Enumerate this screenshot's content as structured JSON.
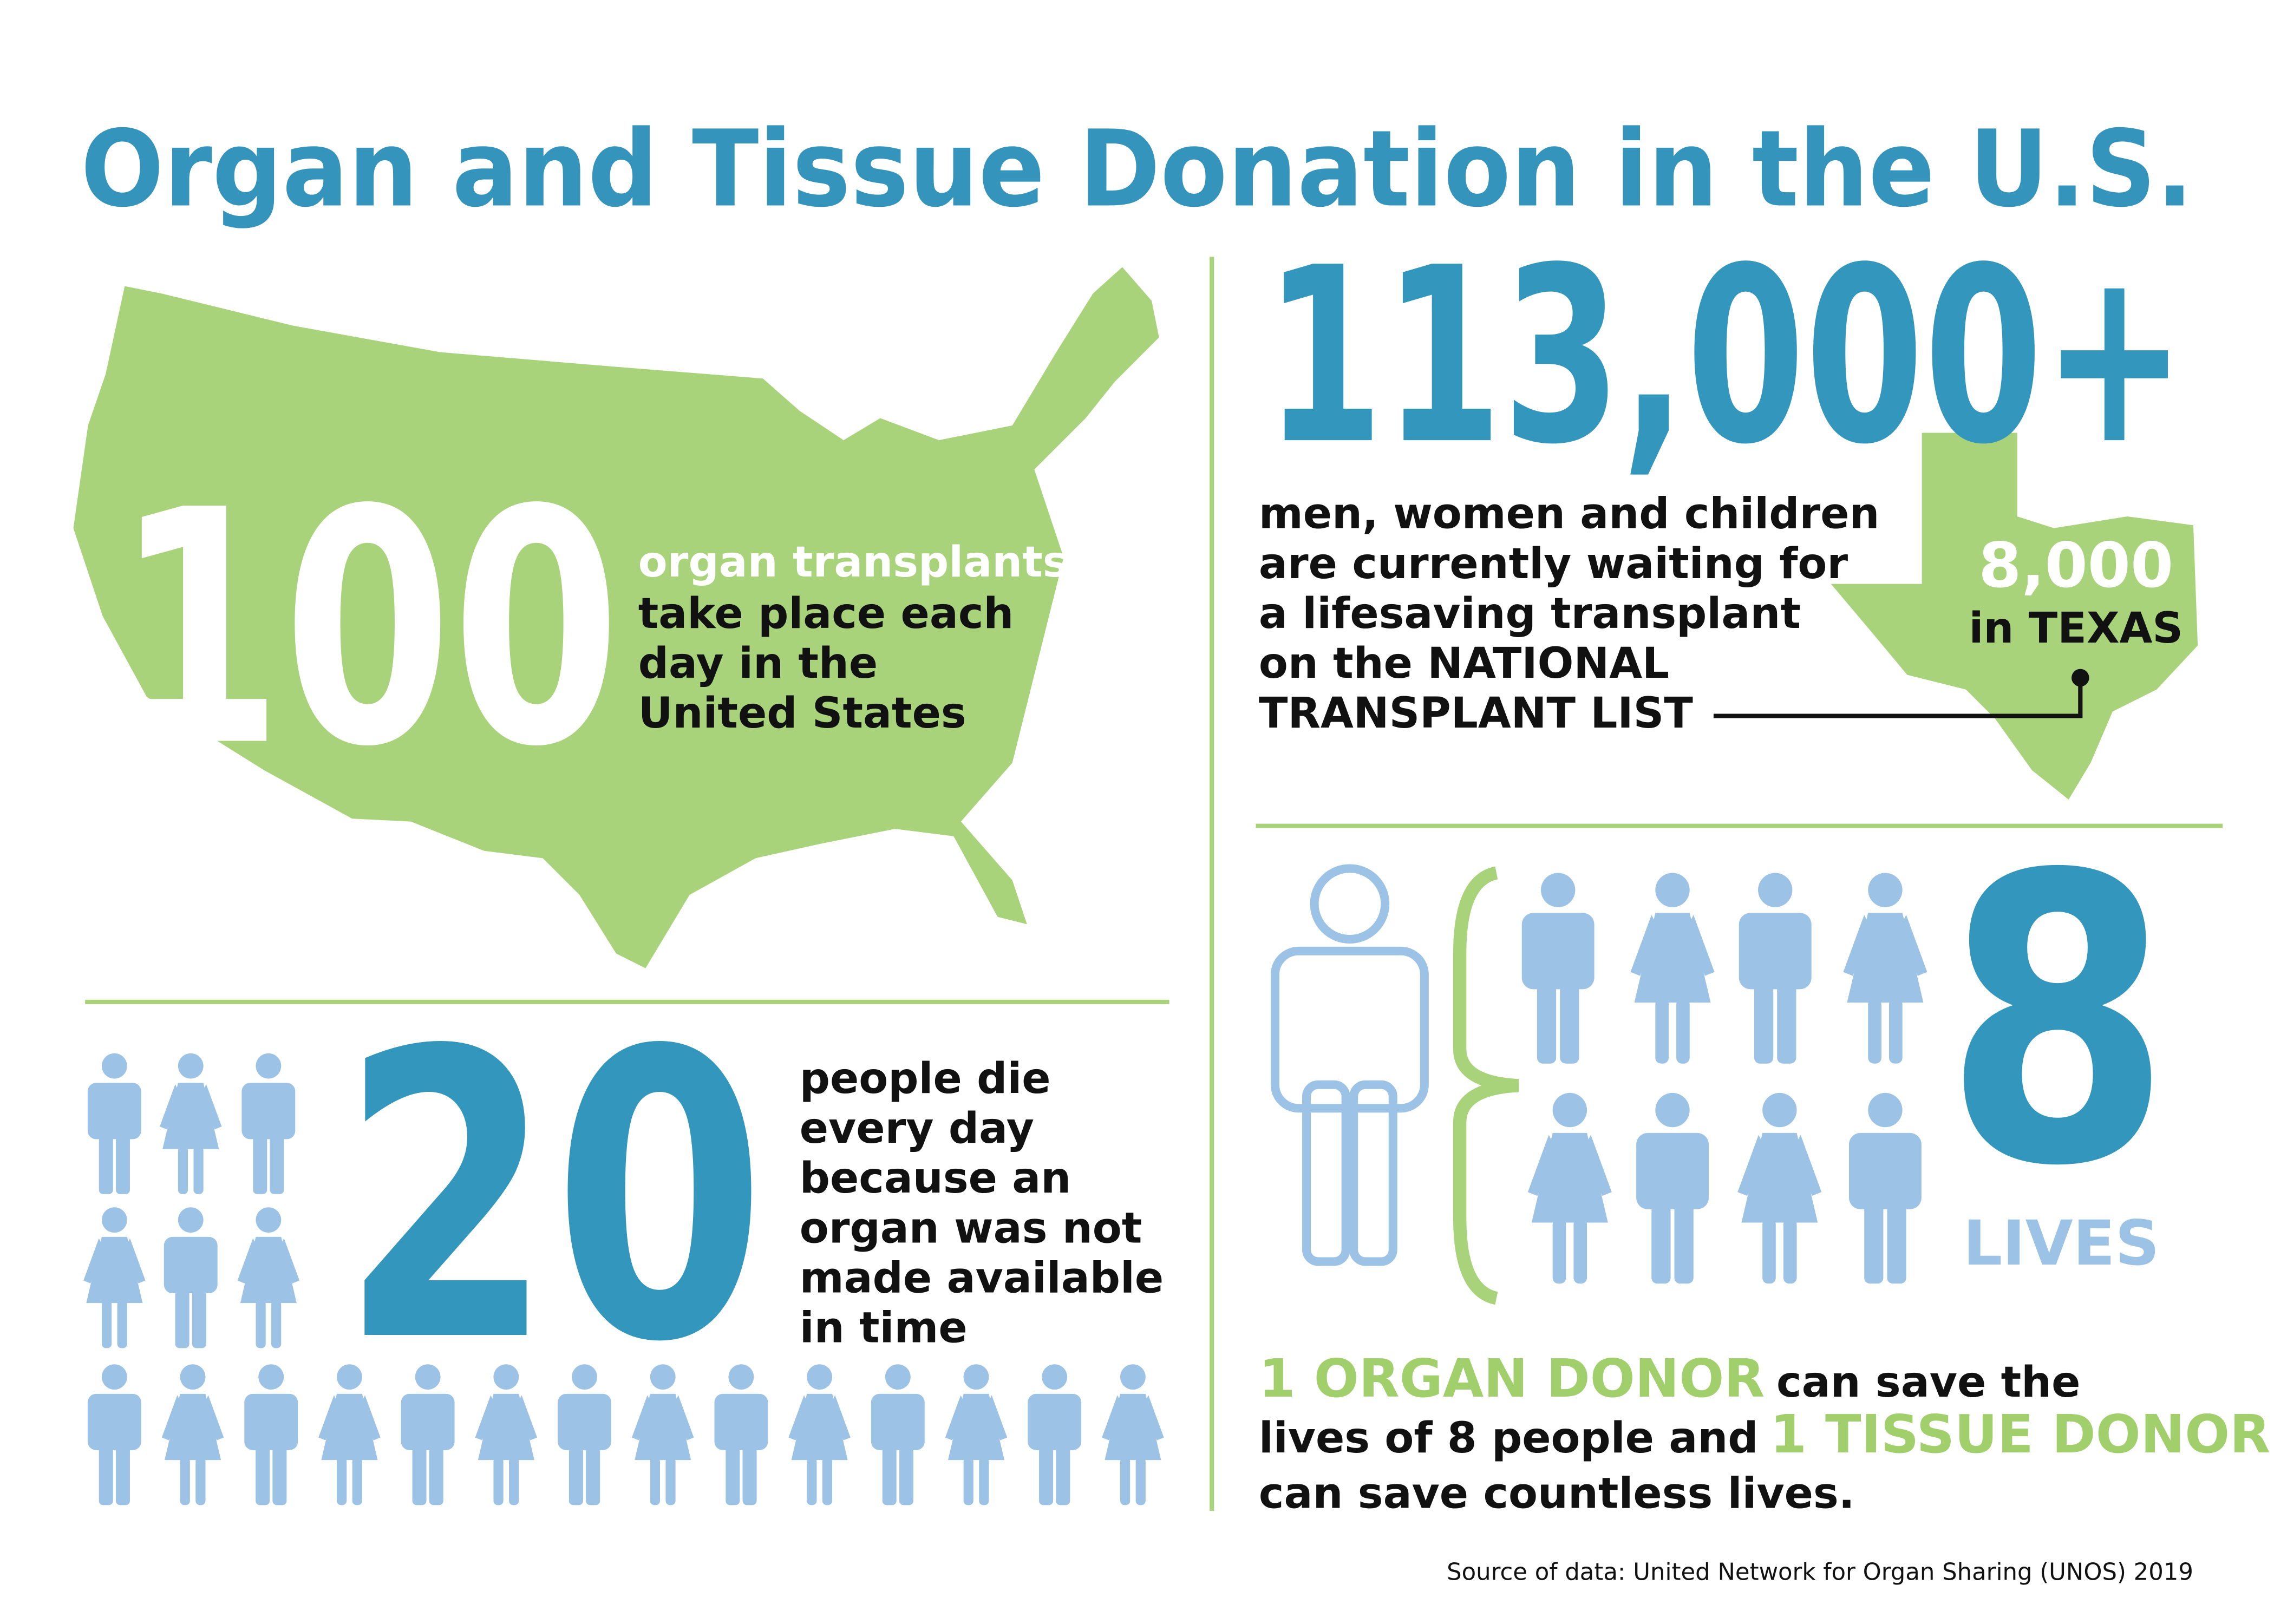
{
  "header": {
    "title": "Organ and Tissue Donation in the U.S."
  },
  "transplants": {
    "number": "100",
    "highlight": "organ transplants",
    "lines": [
      "take place each",
      "day in the",
      "United States"
    ]
  },
  "waiting": {
    "number": "113,000+",
    "lines": [
      "men, women and children",
      "are currently waiting for",
      "a lifesaving transplant",
      "on the NATIONAL",
      "TRANSPLANT LIST"
    ],
    "texas_number": "8,000",
    "texas_label": "in TEXAS"
  },
  "deaths": {
    "number": "20",
    "lines": [
      "people die",
      "every day",
      "because an",
      "organ was not",
      "made available",
      "in time"
    ]
  },
  "lives": {
    "number": "8",
    "label": "LIVES"
  },
  "donor": {
    "organ_donor": "1 ORGAN DONOR",
    "line1_rest": "can save the",
    "line2_start": "lives of 8 people and",
    "tissue_donor": "1 TISSUE DONOR",
    "line3": "can save countless lives."
  },
  "source": "Source of data: United Network for Organ Sharing (UNOS) 2019"
}
